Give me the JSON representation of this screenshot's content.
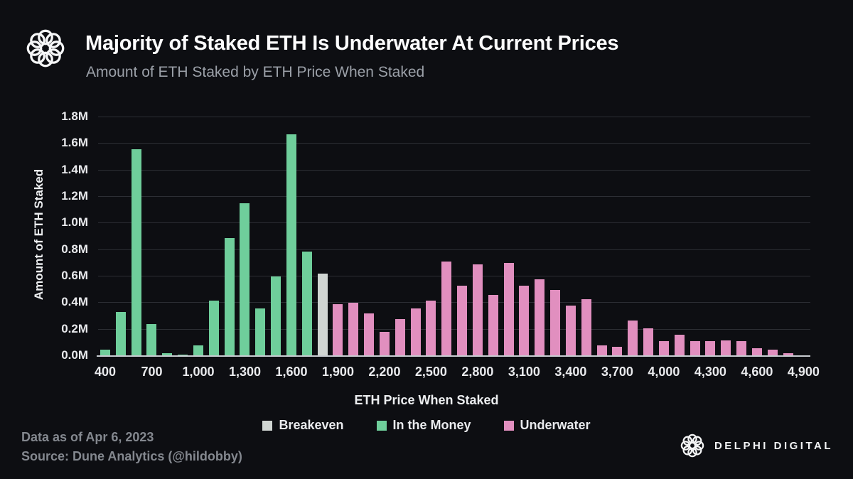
{
  "header": {
    "title": "Majority of Staked ETH Is Underwater At Current Prices",
    "subtitle": "Amount of ETH Staked by ETH Price When Staked"
  },
  "chart_data": {
    "type": "bar",
    "title": "Majority of Staked ETH Is Underwater At Current Prices",
    "subtitle": "Amount of ETH Staked by ETH Price When Staked",
    "xlabel": "ETH Price When Staked",
    "ylabel": "Amount of ETH Staked",
    "value_unit": "millions of ETH",
    "ylim": [
      0,
      1.8
    ],
    "y_tick_labels": [
      "0.0M",
      "0.2M",
      "0.4M",
      "0.6M",
      "0.8M",
      "1.0M",
      "1.2M",
      "1.4M",
      "1.6M",
      "1.8M"
    ],
    "grid": "horizontal",
    "legend_position": "bottom-center",
    "colors": {
      "breakeven": "#D0D5D2",
      "in_the_money": "#6FCE9B",
      "underwater": "#E18FBF"
    },
    "legend": [
      {
        "label": "Breakeven",
        "group": "breakeven"
      },
      {
        "label": "In the Money",
        "group": "in_the_money"
      },
      {
        "label": "Underwater",
        "group": "underwater"
      }
    ],
    "bars": [
      {
        "price": 400,
        "tick": "400",
        "value": 0.05,
        "group": "in_the_money"
      },
      {
        "price": 500,
        "value": 0.33,
        "group": "in_the_money"
      },
      {
        "price": 600,
        "value": 1.56,
        "group": "in_the_money"
      },
      {
        "price": 700,
        "tick": "700",
        "value": 0.24,
        "group": "in_the_money"
      },
      {
        "price": 800,
        "value": 0.02,
        "group": "in_the_money"
      },
      {
        "price": 900,
        "value": 0.01,
        "group": "in_the_money"
      },
      {
        "price": 1000,
        "tick": "1,000",
        "value": 0.08,
        "group": "in_the_money"
      },
      {
        "price": 1100,
        "value": 0.42,
        "group": "in_the_money"
      },
      {
        "price": 1200,
        "value": 0.89,
        "group": "in_the_money"
      },
      {
        "price": 1300,
        "tick": "1,300",
        "value": 1.15,
        "group": "in_the_money"
      },
      {
        "price": 1400,
        "value": 0.36,
        "group": "in_the_money"
      },
      {
        "price": 1500,
        "value": 0.6,
        "group": "in_the_money"
      },
      {
        "price": 1600,
        "tick": "1,600",
        "value": 1.67,
        "group": "in_the_money"
      },
      {
        "price": 1700,
        "value": 0.79,
        "group": "in_the_money"
      },
      {
        "price": 1800,
        "value": 0.62,
        "group": "breakeven"
      },
      {
        "price": 1900,
        "tick": "1,900",
        "value": 0.39,
        "group": "underwater"
      },
      {
        "price": 2000,
        "value": 0.4,
        "group": "underwater"
      },
      {
        "price": 2100,
        "value": 0.32,
        "group": "underwater"
      },
      {
        "price": 2200,
        "tick": "2,200",
        "value": 0.18,
        "group": "underwater"
      },
      {
        "price": 2300,
        "value": 0.28,
        "group": "underwater"
      },
      {
        "price": 2400,
        "value": 0.36,
        "group": "underwater"
      },
      {
        "price": 2500,
        "tick": "2,500",
        "value": 0.42,
        "group": "underwater"
      },
      {
        "price": 2600,
        "value": 0.71,
        "group": "underwater"
      },
      {
        "price": 2700,
        "value": 0.53,
        "group": "underwater"
      },
      {
        "price": 2800,
        "tick": "2,800",
        "value": 0.69,
        "group": "underwater"
      },
      {
        "price": 2900,
        "value": 0.46,
        "group": "underwater"
      },
      {
        "price": 3000,
        "value": 0.7,
        "group": "underwater"
      },
      {
        "price": 3100,
        "tick": "3,100",
        "value": 0.53,
        "group": "underwater"
      },
      {
        "price": 3200,
        "value": 0.58,
        "group": "underwater"
      },
      {
        "price": 3300,
        "value": 0.5,
        "group": "underwater"
      },
      {
        "price": 3400,
        "tick": "3,400",
        "value": 0.38,
        "group": "underwater"
      },
      {
        "price": 3500,
        "value": 0.43,
        "group": "underwater"
      },
      {
        "price": 3600,
        "value": 0.08,
        "group": "underwater"
      },
      {
        "price": 3700,
        "tick": "3,700",
        "value": 0.07,
        "group": "underwater"
      },
      {
        "price": 3800,
        "value": 0.27,
        "group": "underwater"
      },
      {
        "price": 3900,
        "value": 0.21,
        "group": "underwater"
      },
      {
        "price": 4000,
        "tick": "4,000",
        "value": 0.11,
        "group": "underwater"
      },
      {
        "price": 4100,
        "value": 0.16,
        "group": "underwater"
      },
      {
        "price": 4200,
        "value": 0.11,
        "group": "underwater"
      },
      {
        "price": 4300,
        "tick": "4,300",
        "value": 0.11,
        "group": "underwater"
      },
      {
        "price": 4400,
        "value": 0.12,
        "group": "underwater"
      },
      {
        "price": 4500,
        "value": 0.11,
        "group": "underwater"
      },
      {
        "price": 4600,
        "tick": "4,600",
        "value": 0.06,
        "group": "underwater"
      },
      {
        "price": 4700,
        "value": 0.05,
        "group": "underwater"
      },
      {
        "price": 4800,
        "value": 0.02,
        "group": "underwater"
      },
      {
        "price": 4900,
        "tick": "4,900",
        "value": 0.005,
        "group": "underwater"
      }
    ],
    "theme": {
      "background": "#0D0E12",
      "gridline": "#2C2E34",
      "axis_line": "#C8CCD1",
      "text_primary": "#FDFDFE",
      "text_muted": "#9BA0A8",
      "footer_text": "#84888F"
    }
  },
  "footer": {
    "data_as_of": "Data as of Apr 6, 2023",
    "source": "Source: Dune Analytics (@hildobby)",
    "brand": "DELPHI DIGITAL"
  }
}
